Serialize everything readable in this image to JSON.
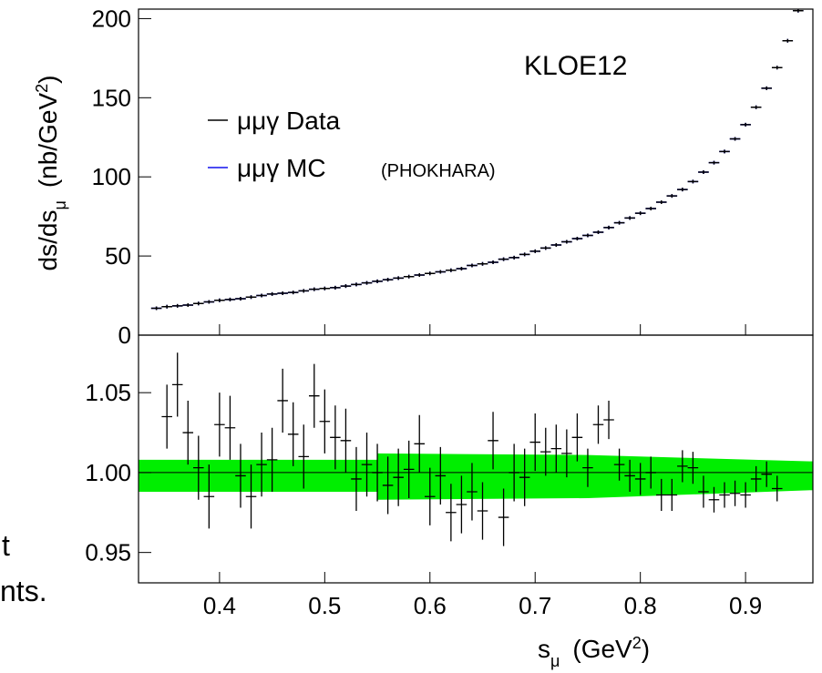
{
  "chart_data": [
    {
      "type": "errorbar",
      "annotation": "KLOE12",
      "y_label": [
        "ds/ds",
        "μ",
        "(nb/GeV",
        "2",
        ")"
      ],
      "legend_note": "(PHOKHARA)",
      "xlim": [
        0.323,
        0.964
      ],
      "xticks": [
        0.4,
        0.5,
        0.6,
        0.7,
        0.8,
        0.9
      ],
      "ylim": [
        0,
        206
      ],
      "yticks": [
        0,
        50,
        100,
        150,
        200
      ],
      "bin_width": 0.01,
      "x": [
        0.34,
        0.35,
        0.36,
        0.37,
        0.38,
        0.39,
        0.4,
        0.41,
        0.42,
        0.43,
        0.44,
        0.45,
        0.46,
        0.47,
        0.48,
        0.49,
        0.5,
        0.51,
        0.52,
        0.53,
        0.54,
        0.55,
        0.56,
        0.57,
        0.58,
        0.59,
        0.6,
        0.61,
        0.62,
        0.63,
        0.64,
        0.65,
        0.66,
        0.67,
        0.68,
        0.69,
        0.7,
        0.71,
        0.72,
        0.73,
        0.74,
        0.75,
        0.76,
        0.77,
        0.78,
        0.79,
        0.8,
        0.81,
        0.82,
        0.83,
        0.84,
        0.85,
        0.86,
        0.87,
        0.88,
        0.89,
        0.9,
        0.91,
        0.92,
        0.93,
        0.94,
        0.95
      ],
      "series": [
        {
          "name": "μμγ MC",
          "color": "#1010ee",
          "values": [
            17,
            18,
            18.5,
            19,
            20,
            21,
            22,
            22.5,
            23,
            24,
            25,
            26,
            26.5,
            27,
            28,
            29,
            29.5,
            30,
            31,
            32,
            33,
            34,
            35,
            36,
            37,
            38,
            39,
            40,
            41,
            42,
            44,
            45,
            46,
            48,
            49,
            51,
            53,
            55,
            57,
            59,
            61,
            63,
            65,
            68,
            71,
            74,
            77,
            80,
            84,
            88,
            92,
            97,
            103,
            109,
            116,
            124,
            133,
            144,
            156,
            169,
            186,
            205
          ]
        },
        {
          "name": "μμγ Data",
          "color": "#000000",
          "values": [
            17,
            18,
            18.5,
            19,
            20,
            21,
            22,
            22.5,
            23,
            24,
            25,
            26,
            26.5,
            27,
            28,
            29,
            29.5,
            30,
            31,
            32,
            33,
            34,
            35,
            36,
            37,
            38,
            39,
            40,
            41,
            42,
            44,
            45,
            46,
            48,
            49,
            51,
            53,
            55,
            57,
            59,
            61,
            63,
            65,
            68,
            71,
            74,
            77,
            80,
            84,
            88,
            92,
            97,
            103,
            109,
            116,
            124,
            133,
            144,
            156,
            169,
            186,
            205
          ]
        }
      ]
    },
    {
      "type": "errorbar",
      "x_label": [
        "s",
        "μ",
        "(GeV",
        "2",
        ")"
      ],
      "xlim": [
        0.323,
        0.964
      ],
      "xticks": [
        0.4,
        0.5,
        0.6,
        0.7,
        0.8,
        0.9
      ],
      "ylim": [
        0.931,
        1.086
      ],
      "yticks": [
        0.95,
        {
          "value": 1.0,
          "label": "1.00"
        },
        1.05
      ],
      "reference_line": 1,
      "bin_width": 0.01,
      "band": {
        "color": "#00ee00",
        "x": [
          0.323,
          0.55,
          0.55,
          0.75,
          0.964
        ],
        "upper": [
          1.008,
          1.008,
          1.012,
          1.011,
          1.007
        ],
        "lower": [
          0.988,
          0.988,
          0.983,
          0.984,
          0.989
        ]
      },
      "x": [
        0.35,
        0.36,
        0.37,
        0.38,
        0.39,
        0.4,
        0.41,
        0.42,
        0.43,
        0.44,
        0.45,
        0.46,
        0.47,
        0.48,
        0.49,
        0.5,
        0.51,
        0.52,
        0.53,
        0.54,
        0.55,
        0.56,
        0.57,
        0.58,
        0.59,
        0.6,
        0.61,
        0.62,
        0.63,
        0.64,
        0.65,
        0.66,
        0.67,
        0.68,
        0.69,
        0.7,
        0.71,
        0.72,
        0.73,
        0.74,
        0.75,
        0.76,
        0.77,
        0.78,
        0.79,
        0.8,
        0.81,
        0.82,
        0.83,
        0.84,
        0.85,
        0.86,
        0.87,
        0.88,
        0.89,
        0.9,
        0.91,
        0.92,
        0.93
      ],
      "series": [
        {
          "color": "#000000",
          "values": [
            1.035,
            1.055,
            1.025,
            1.003,
            0.985,
            1.03,
            1.028,
            0.998,
            0.985,
            1.005,
            1.008,
            1.045,
            1.024,
            1.01,
            1.048,
            1.032,
            1.022,
            1.02,
            0.996,
            1.005,
            1.0,
            0.992,
            0.997,
            1.002,
            1.018,
            0.985,
            0.998,
            0.975,
            0.98,
            0.988,
            0.976,
            1.02,
            0.972,
            1.0,
            0.997,
            1.019,
            1.013,
            1.015,
            1.012,
            1.022,
            1.003,
            1.03,
            1.033,
            1.005,
            0.998,
            0.996,
            1.0,
            0.986,
            0.986,
            1.004,
            1.003,
            0.988,
            0.983,
            0.986,
            0.987,
            0.986,
            0.996,
            0.999,
            0.99
          ],
          "errors": [
            0.02,
            0.02,
            0.02,
            0.02,
            0.02,
            0.02,
            0.02,
            0.02,
            0.02,
            0.02,
            0.02,
            0.02,
            0.02,
            0.02,
            0.02,
            0.02,
            0.02,
            0.02,
            0.02,
            0.02,
            0.018,
            0.018,
            0.018,
            0.018,
            0.018,
            0.018,
            0.018,
            0.018,
            0.018,
            0.018,
            0.018,
            0.018,
            0.018,
            0.018,
            0.018,
            0.018,
            0.015,
            0.015,
            0.015,
            0.015,
            0.012,
            0.012,
            0.012,
            0.01,
            0.01,
            0.01,
            0.01,
            0.01,
            0.01,
            0.01,
            0.01,
            0.01,
            0.008,
            0.008,
            0.008,
            0.008,
            0.008,
            0.008,
            0.008
          ]
        }
      ]
    }
  ],
  "slide_fragments": [
    "t",
    "nts."
  ]
}
